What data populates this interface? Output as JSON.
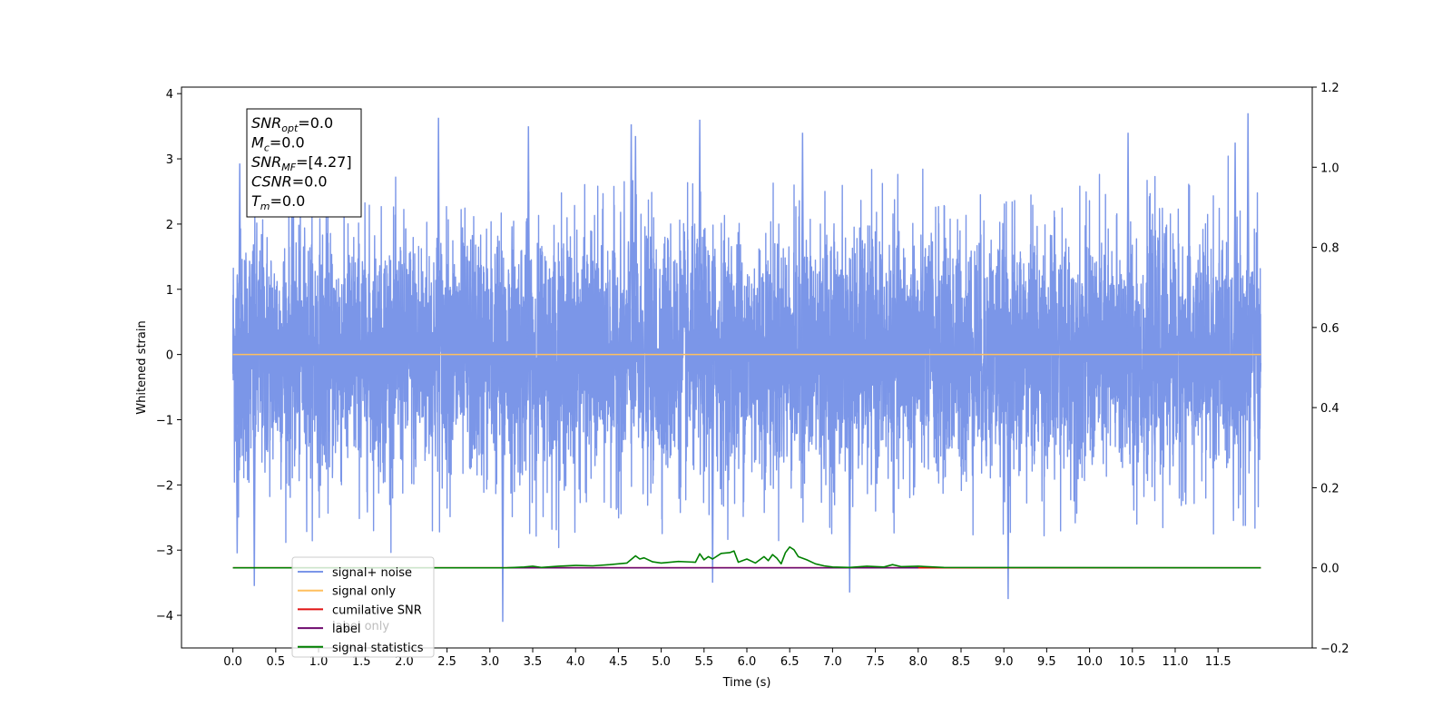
{
  "chart_data": {
    "type": "line",
    "title": "",
    "xlabel": "Time (s)",
    "ylabel": "Whitened strain",
    "y2label": "",
    "xlim": [
      -0.6,
      12.6
    ],
    "ylim": [
      -4.5,
      4.1
    ],
    "y2lim": [
      -0.2,
      1.2
    ],
    "x_ticks": [
      0.0,
      0.5,
      1.0,
      1.5,
      2.0,
      2.5,
      3.0,
      3.5,
      4.0,
      4.5,
      5.0,
      5.5,
      6.0,
      6.5,
      7.0,
      7.5,
      8.0,
      8.5,
      9.0,
      9.5,
      10.0,
      10.5,
      11.0,
      11.5
    ],
    "x_tick_labels": [
      "0.0",
      "0.5",
      "1.0",
      "1.5",
      "2.0",
      "2.5",
      "3.0",
      "3.5",
      "4.0",
      "4.5",
      "5.0",
      "5.5",
      "6.0",
      "6.5",
      "7.0",
      "7.5",
      "8.0",
      "8.5",
      "9.0",
      "9.5",
      "10.0",
      "10.5",
      "11.0",
      "11.5"
    ],
    "y_ticks": [
      -4,
      -3,
      -2,
      -1,
      0,
      1,
      2,
      3,
      4
    ],
    "y_tick_labels": [
      "−4",
      "−3",
      "−2",
      "−1",
      "0",
      "1",
      "2",
      "3",
      "4"
    ],
    "y2_ticks": [
      -0.2,
      0.0,
      0.2,
      0.4,
      0.6,
      0.8,
      1.0,
      1.2
    ],
    "y2_tick_labels": [
      "−0.2",
      "0.0",
      "0.2",
      "0.4",
      "0.6",
      "0.8",
      "1.0",
      "1.2"
    ],
    "grid": false,
    "legend_position": "lower-left",
    "series": [
      {
        "name": "signal+ noise",
        "axis": "left",
        "color": "#7b96e8",
        "kind": "noise",
        "x_range": [
          0.0,
          12.0
        ],
        "typical_amplitude": [
          -2.3,
          2.4
        ],
        "peaks": [
          {
            "x": 0.08,
            "y": 2.93
          },
          {
            "x": 0.25,
            "y": -3.55
          },
          {
            "x": 0.05,
            "y": -3.05
          },
          {
            "x": 2.4,
            "y": 3.63
          },
          {
            "x": 3.15,
            "y": -4.1
          },
          {
            "x": 3.45,
            "y": 3.5
          },
          {
            "x": 4.65,
            "y": 3.53
          },
          {
            "x": 4.7,
            "y": 3.35
          },
          {
            "x": 5.6,
            "y": -3.5
          },
          {
            "x": 5.45,
            "y": 3.6
          },
          {
            "x": 6.65,
            "y": 3.4
          },
          {
            "x": 7.2,
            "y": -3.65
          },
          {
            "x": 9.05,
            "y": -3.75
          },
          {
            "x": 10.45,
            "y": 3.4
          },
          {
            "x": 11.85,
            "y": 3.7
          },
          {
            "x": 11.7,
            "y": 3.25
          }
        ]
      },
      {
        "name": "signal only",
        "axis": "left",
        "color": "#ffbf5e",
        "kind": "line",
        "x": [
          0.0,
          12.0
        ],
        "y": [
          0.0,
          0.0
        ]
      },
      {
        "name": "cumilative SNR",
        "axis": "right",
        "color": "#e01010",
        "kind": "line",
        "x": [
          0.0,
          12.0
        ],
        "y": [
          0.0,
          0.0
        ]
      },
      {
        "name": "label",
        "axis": "right",
        "color": "#6e0a6e",
        "kind": "line",
        "x": [
          3.2,
          8.0
        ],
        "y": [
          0.0,
          0.0
        ]
      },
      {
        "name": "signal statistics",
        "axis": "right",
        "color": "#008000",
        "kind": "line",
        "x": [
          0.0,
          3.2,
          3.4,
          3.5,
          3.6,
          3.8,
          4.0,
          4.2,
          4.4,
          4.6,
          4.7,
          4.75,
          4.8,
          4.9,
          5.0,
          5.2,
          5.4,
          5.45,
          5.5,
          5.55,
          5.6,
          5.7,
          5.8,
          5.85,
          5.9,
          6.0,
          6.1,
          6.2,
          6.25,
          6.3,
          6.35,
          6.4,
          6.45,
          6.5,
          6.55,
          6.6,
          6.7,
          6.8,
          6.9,
          7.0,
          7.2,
          7.4,
          7.6,
          7.7,
          7.8,
          8.0,
          8.3,
          12.0
        ],
        "y": [
          0.0,
          0.0,
          0.002,
          0.004,
          0.001,
          0.004,
          0.006,
          0.005,
          0.008,
          0.012,
          0.03,
          0.022,
          0.025,
          0.015,
          0.012,
          0.016,
          0.014,
          0.035,
          0.02,
          0.028,
          0.022,
          0.036,
          0.038,
          0.042,
          0.014,
          0.022,
          0.012,
          0.028,
          0.018,
          0.033,
          0.024,
          0.01,
          0.038,
          0.052,
          0.045,
          0.028,
          0.02,
          0.01,
          0.005,
          0.002,
          0.001,
          0.004,
          0.002,
          0.008,
          0.003,
          0.004,
          0.001,
          0.0
        ]
      }
    ],
    "annotation": {
      "lines": [
        {
          "name": "SNR",
          "sub": "opt",
          "value": "=0.0"
        },
        {
          "name": "M",
          "sub": "c",
          "value": "=0.0"
        },
        {
          "name": "SNR",
          "sub": "MF",
          "value": "=[4.27]"
        },
        {
          "name": "CSNR",
          "sub": "",
          "value": "=0.0"
        },
        {
          "name": "T",
          "sub": "m",
          "value": "=0.0"
        }
      ]
    },
    "legend": {
      "entries": [
        "signal+ noise",
        "signal only",
        "cumilative SNR",
        "label",
        "signal statistics"
      ],
      "occluded_text": "label only"
    }
  }
}
